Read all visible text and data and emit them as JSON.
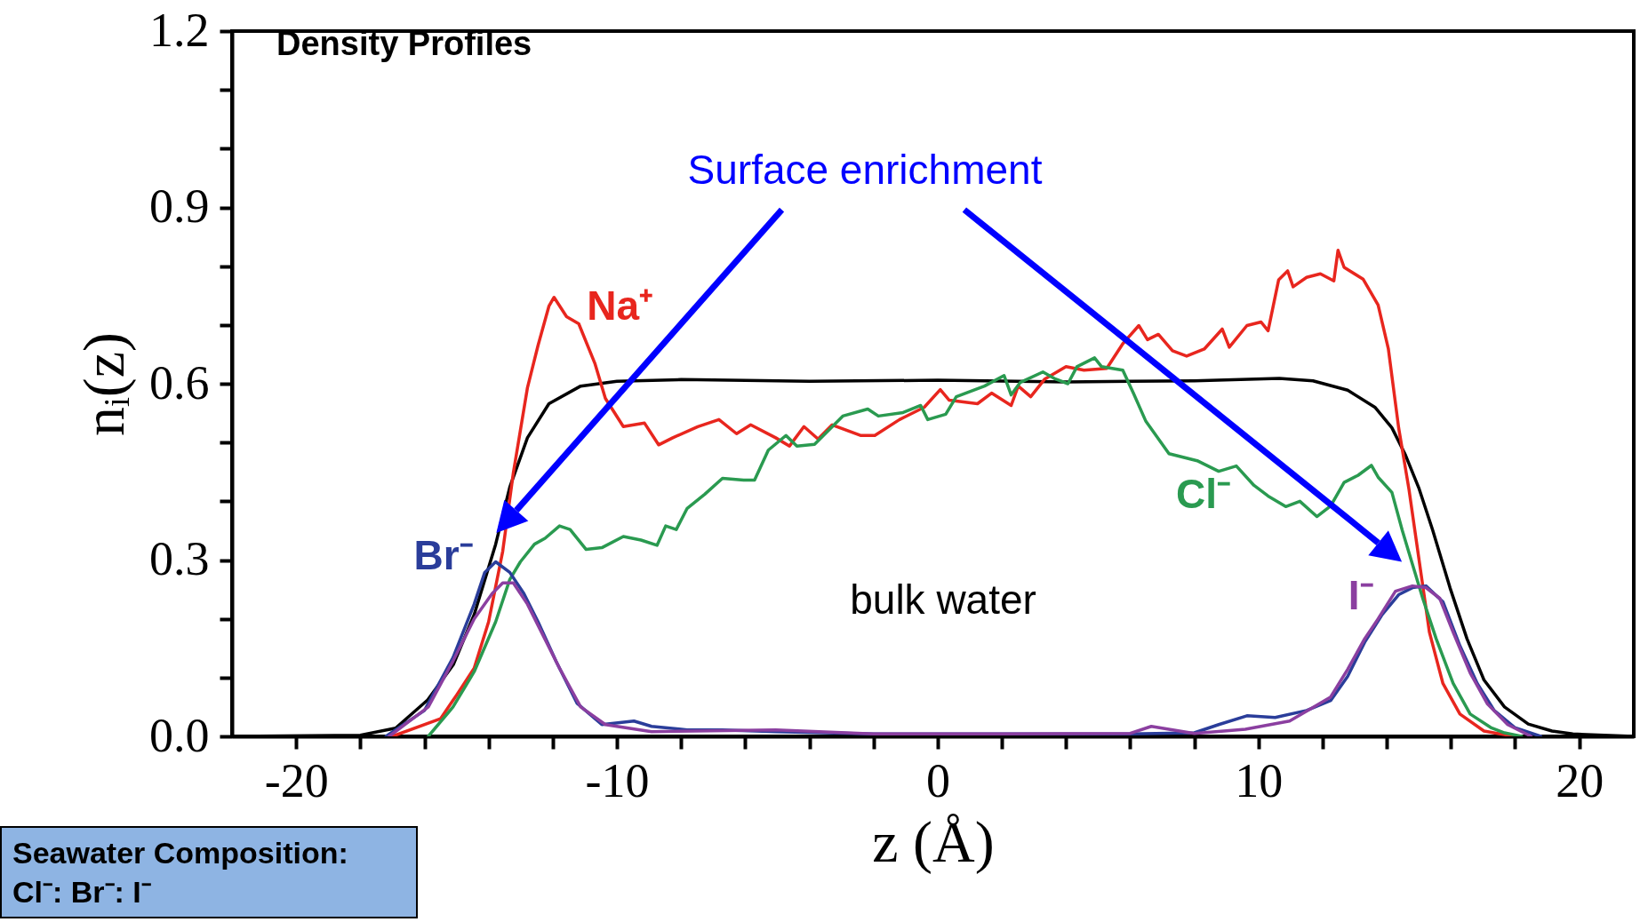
{
  "chart_data": {
    "type": "line",
    "title": "Density Profiles",
    "xlabel": "z (Å)",
    "ylabel": "nᵢ(z)",
    "annotations": [
      "Surface enrichment",
      "bulk water",
      "Seawater Composition:",
      "Cl⁻: Br⁻: I⁻"
    ],
    "xlim": [
      -22,
      21.7
    ],
    "ylim": [
      0,
      1.2
    ],
    "xticks": [
      {
        "value": -20,
        "label": "-20"
      },
      {
        "value": -18,
        "label": null
      },
      {
        "value": -16,
        "label": null
      },
      {
        "value": -14,
        "label": null
      },
      {
        "value": -12,
        "label": null
      },
      {
        "value": -10,
        "label": "-10"
      },
      {
        "value": -8,
        "label": null
      },
      {
        "value": -6,
        "label": null
      },
      {
        "value": -4,
        "label": null
      },
      {
        "value": -2,
        "label": null
      },
      0,
      {
        "value": 2,
        "label": null
      },
      {
        "value": 4,
        "label": null
      },
      {
        "value": 6,
        "label": null
      },
      {
        "value": 8,
        "label": null
      },
      10,
      {
        "value": 12,
        "label": null
      },
      {
        "value": 14,
        "label": null
      },
      {
        "value": 16,
        "label": null
      },
      {
        "value": 18,
        "label": null
      },
      20
    ],
    "yticks": [
      {
        "value": 0,
        "label": "0.0"
      },
      {
        "value": 0.1,
        "label": null
      },
      {
        "value": 0.2,
        "label": null
      },
      0.3,
      {
        "value": 0.4,
        "label": null
      },
      {
        "value": 0.5,
        "label": null
      },
      0.6,
      {
        "value": 0.7,
        "label": null
      },
      {
        "value": 0.8,
        "label": null
      },
      0.9,
      {
        "value": 1.0,
        "label": null
      },
      {
        "value": 1.1,
        "label": null
      },
      1.2
    ],
    "grid": false,
    "legend": false,
    "line_style": "solid",
    "marker": "none",
    "series": [
      {
        "color": "#000000",
        "x": [
          -22,
          -18,
          -16.9,
          -15.9,
          -15.1,
          -14.45,
          -13.78,
          -13.34,
          -12.79,
          -12.12,
          -11.13,
          -10,
          -8,
          -4,
          0,
          4,
          8,
          10.65,
          11.7,
          12.78,
          13.63,
          14.16,
          14.58,
          15.01,
          15.43,
          15.97,
          16.5,
          17.03,
          17.67,
          18.41,
          19.15,
          19.8,
          21.7
        ],
        "values": [
          0,
          0.002,
          0.014,
          0.062,
          0.122,
          0.207,
          0.327,
          0.424,
          0.508,
          0.566,
          0.596,
          0.604,
          0.607,
          0.604,
          0.606,
          0.603,
          0.605,
          0.609,
          0.605,
          0.589,
          0.56,
          0.525,
          0.479,
          0.421,
          0.351,
          0.253,
          0.166,
          0.096,
          0.05,
          0.021,
          0.009,
          0.004,
          0
        ]
      },
      {
        "name": "Na⁺",
        "color": "#e8261e",
        "x": [
          -17,
          -15.5,
          -15,
          -14.45,
          -14.0,
          -13.56,
          -13.23,
          -12.79,
          -12.46,
          -12.12,
          -11.96,
          -11.57,
          -11.19,
          -10.69,
          -10.36,
          -9.8,
          -9.14,
          -8.7,
          -8.26,
          -7.48,
          -6.82,
          -6.27,
          -5.83,
          -5.05,
          -4.62,
          -4.17,
          -3.73,
          -3.29,
          -2.41,
          -1.96,
          -1.19,
          -0.42,
          0.08,
          0.36,
          1.24,
          1.68,
          2.29,
          2.51,
          2.9,
          3.34,
          4.0,
          4.56,
          5.27,
          5.77,
          6.27,
          6.54,
          6.88,
          7.32,
          7.76,
          8.31,
          8.87,
          9.09,
          9.64,
          10.08,
          10.3,
          10.63,
          10.91,
          11.08,
          11.5,
          11.93,
          12.35,
          12.48,
          12.67,
          13.26,
          13.73,
          14.05,
          14.37,
          14.69,
          15.01,
          15.33,
          15.75,
          16.28,
          17.03,
          17.45,
          18
        ],
        "values": [
          0,
          0.03,
          0.07,
          0.116,
          0.195,
          0.315,
          0.448,
          0.593,
          0.665,
          0.732,
          0.747,
          0.714,
          0.702,
          0.635,
          0.575,
          0.527,
          0.533,
          0.496,
          0.508,
          0.527,
          0.539,
          0.515,
          0.53,
          0.508,
          0.494,
          0.527,
          0.506,
          0.53,
          0.512,
          0.512,
          0.539,
          0.56,
          0.59,
          0.572,
          0.566,
          0.584,
          0.563,
          0.596,
          0.578,
          0.608,
          0.629,
          0.623,
          0.626,
          0.668,
          0.699,
          0.675,
          0.684,
          0.656,
          0.647,
          0.659,
          0.693,
          0.662,
          0.699,
          0.705,
          0.69,
          0.777,
          0.792,
          0.765,
          0.781,
          0.787,
          0.775,
          0.827,
          0.798,
          0.778,
          0.734,
          0.659,
          0.525,
          0.421,
          0.299,
          0.177,
          0.09,
          0.038,
          0.009,
          0.005,
          0
        ]
      },
      {
        "name": "Cl⁻",
        "color": "#2a9a50",
        "x": [
          -15.88,
          -15.11,
          -14.45,
          -13.78,
          -13.34,
          -13.01,
          -12.57,
          -12.24,
          -11.79,
          -11.46,
          -10.96,
          -10.47,
          -9.8,
          -9.25,
          -8.75,
          -8.48,
          -8.15,
          -7.81,
          -7.26,
          -6.71,
          -6.05,
          -5.71,
          -5.28,
          -4.73,
          -4.39,
          -3.84,
          -2.96,
          -2.18,
          -1.85,
          -1.08,
          -0.53,
          -0.31,
          0.25,
          0.58,
          1.46,
          2.07,
          2.29,
          2.57,
          3.28,
          3.67,
          4.06,
          4.34,
          4.89,
          5.11,
          5.77,
          6.1,
          6.49,
          7.21,
          7.65,
          8.09,
          8.76,
          9.31,
          9.86,
          10.3,
          10.85,
          11.29,
          11.82,
          12.25,
          12.67,
          13.1,
          13.52,
          13.73,
          14.16,
          14.48,
          14.8,
          15.12,
          15.54,
          16.07,
          16.6,
          17.24,
          17.67,
          18.2
        ],
        "values": [
          0,
          0.05,
          0.11,
          0.195,
          0.267,
          0.297,
          0.327,
          0.337,
          0.358,
          0.352,
          0.318,
          0.321,
          0.34,
          0.334,
          0.325,
          0.358,
          0.352,
          0.388,
          0.412,
          0.439,
          0.436,
          0.436,
          0.487,
          0.512,
          0.494,
          0.497,
          0.545,
          0.557,
          0.545,
          0.551,
          0.563,
          0.539,
          0.548,
          0.578,
          0.596,
          0.614,
          0.581,
          0.602,
          0.62,
          0.608,
          0.6,
          0.629,
          0.644,
          0.629,
          0.623,
          0.584,
          0.536,
          0.481,
          0.475,
          0.469,
          0.451,
          0.46,
          0.427,
          0.409,
          0.391,
          0.4,
          0.374,
          0.392,
          0.432,
          0.444,
          0.461,
          0.441,
          0.415,
          0.351,
          0.293,
          0.235,
          0.166,
          0.09,
          0.038,
          0.015,
          0.006,
          0
        ]
      },
      {
        "name": "Br⁻",
        "color": "#2a3d9a",
        "x": [
          -17.2,
          -16,
          -15.11,
          -14.45,
          -14.12,
          -13.78,
          -13.34,
          -12.9,
          -12.46,
          -11.9,
          -11.24,
          -10.47,
          -9.47,
          -8.92,
          -7.81,
          -6.71,
          -5.05,
          -2,
          2,
          6,
          8,
          8.76,
          9.64,
          10.52,
          11.5,
          12.25,
          12.78,
          13.31,
          13.84,
          14.37,
          14.8,
          15.22,
          15.75,
          16.28,
          16.82,
          17.35,
          17.99,
          18.8
        ],
        "values": [
          0,
          0.044,
          0.134,
          0.225,
          0.279,
          0.297,
          0.279,
          0.243,
          0.195,
          0.128,
          0.056,
          0.02,
          0.026,
          0.017,
          0.011,
          0.011,
          0.008,
          0.004,
          0.004,
          0.004,
          0.006,
          0.02,
          0.035,
          0.032,
          0.044,
          0.061,
          0.102,
          0.16,
          0.206,
          0.241,
          0.253,
          0.256,
          0.229,
          0.154,
          0.09,
          0.044,
          0.015,
          0
        ]
      },
      {
        "name": "I⁻",
        "color": "#8b3fa0",
        "x": [
          -17.1,
          -15.88,
          -15.11,
          -14.45,
          -13.89,
          -13.56,
          -13.23,
          -12.79,
          -12.35,
          -11.79,
          -11.13,
          -10.36,
          -8.92,
          -5.05,
          -2,
          2,
          6,
          6.66,
          8,
          9.59,
          10.97,
          11.72,
          12.25,
          12.78,
          13.31,
          13.73,
          14.27,
          14.8,
          15.22,
          15.65,
          16.07,
          16.6,
          17.14,
          17.77,
          18.5
        ],
        "values": [
          0,
          0.05,
          0.128,
          0.2,
          0.243,
          0.261,
          0.261,
          0.225,
          0.177,
          0.116,
          0.05,
          0.02,
          0.008,
          0.011,
          0.004,
          0.004,
          0.005,
          0.017,
          0.005,
          0.012,
          0.026,
          0.05,
          0.067,
          0.114,
          0.166,
          0.2,
          0.247,
          0.256,
          0.253,
          0.235,
          0.177,
          0.108,
          0.055,
          0.02,
          0
        ]
      }
    ]
  }
}
